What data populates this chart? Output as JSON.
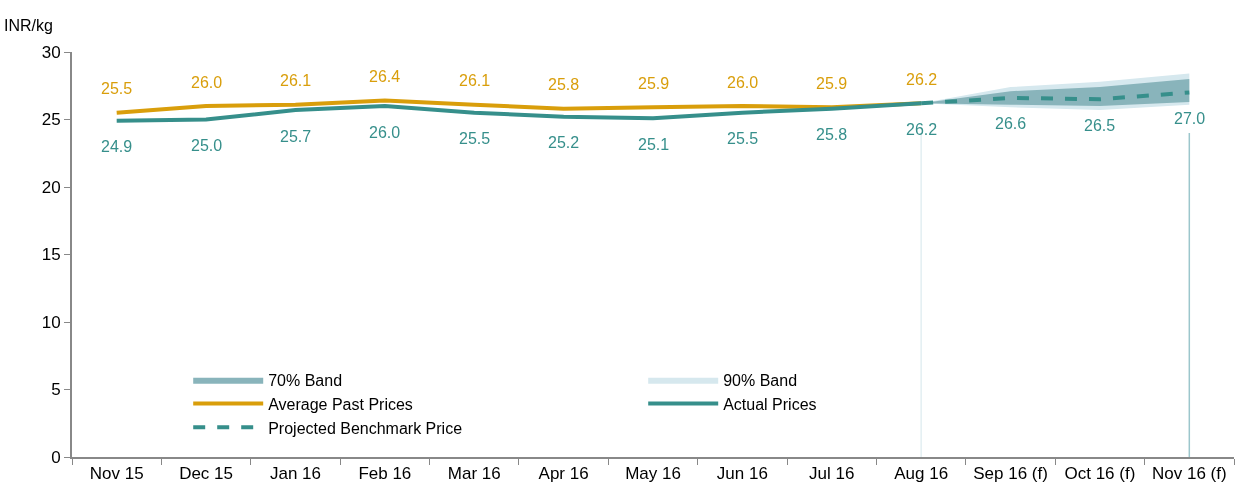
{
  "chart_data": {
    "type": "line",
    "ylabel": "INR/kg",
    "categories": [
      "Nov 15",
      "Dec 15",
      "Jan 16",
      "Feb 16",
      "Mar 16",
      "Apr 16",
      "May 16",
      "Jun 16",
      "Jul 16",
      "Aug 16",
      "Sep 16 (f)",
      "Oct 16 (f)",
      "Nov 16 (f)"
    ],
    "series": [
      {
        "name": "70% Band",
        "type": "area",
        "color": "#89b4bb",
        "values": [
          null,
          null,
          null,
          null,
          null,
          null,
          null,
          null,
          null,
          null,
          null,
          null,
          null
        ],
        "lower": [
          null,
          null,
          null,
          null,
          null,
          null,
          null,
          null,
          null,
          26.2,
          26.1,
          26.0,
          26.3
        ],
        "upper": [
          null,
          null,
          null,
          null,
          null,
          null,
          null,
          null,
          null,
          26.2,
          27.1,
          27.4,
          28.0
        ]
      },
      {
        "name": "90% Band",
        "type": "area",
        "color": "#d6e8ee",
        "values": [
          null,
          null,
          null,
          null,
          null,
          null,
          null,
          null,
          null,
          null,
          null,
          null,
          null
        ],
        "lower": [
          null,
          null,
          null,
          null,
          null,
          null,
          null,
          null,
          null,
          26.2,
          25.9,
          25.7,
          26.1
        ],
        "upper": [
          null,
          null,
          null,
          null,
          null,
          null,
          null,
          null,
          null,
          26.2,
          27.4,
          27.8,
          28.4
        ]
      },
      {
        "name": "Average Past Prices",
        "color": "#d99e0b",
        "line_style": "solid",
        "values": [
          25.5,
          26.0,
          26.1,
          26.4,
          26.1,
          25.8,
          25.9,
          26.0,
          25.9,
          26.2,
          null,
          null,
          null
        ],
        "value_labels": [
          "25.5",
          "26.0",
          "26.1",
          "26.4",
          "26.1",
          "25.8",
          "25.9",
          "26.0",
          "25.9",
          "26.2",
          null,
          null,
          null
        ]
      },
      {
        "name": "Actual Prices",
        "color": "#368f8b",
        "line_style": "solid",
        "values": [
          24.9,
          25.0,
          25.7,
          26.0,
          25.5,
          25.2,
          25.1,
          25.5,
          25.8,
          26.2,
          null,
          null,
          null
        ],
        "value_labels": [
          "24.9",
          "25.0",
          "25.7",
          "26.0",
          "25.5",
          "25.2",
          "25.1",
          "25.5",
          "25.8",
          "26.2",
          null,
          null,
          null
        ]
      },
      {
        "name": "Projected Benchmark Price",
        "color": "#368f8b",
        "line_style": "dashed",
        "values": [
          null,
          null,
          null,
          null,
          null,
          null,
          null,
          null,
          null,
          26.2,
          26.6,
          26.5,
          27.0
        ],
        "value_labels": [
          null,
          null,
          null,
          null,
          null,
          null,
          null,
          null,
          null,
          null,
          "26.6",
          "26.5",
          "27.0"
        ]
      }
    ],
    "ref_lines": [
      {
        "axis": "x",
        "value": "Aug 16",
        "color": "#e3eff2"
      },
      {
        "axis": "x",
        "value": "Nov 16 (f)",
        "color": "#9cc6cc"
      }
    ],
    "ylim": [
      0,
      30
    ],
    "yticks": [
      0,
      5,
      10,
      15,
      20,
      25,
      30
    ],
    "grid": false,
    "legend": "bottom left",
    "marker": "none"
  }
}
